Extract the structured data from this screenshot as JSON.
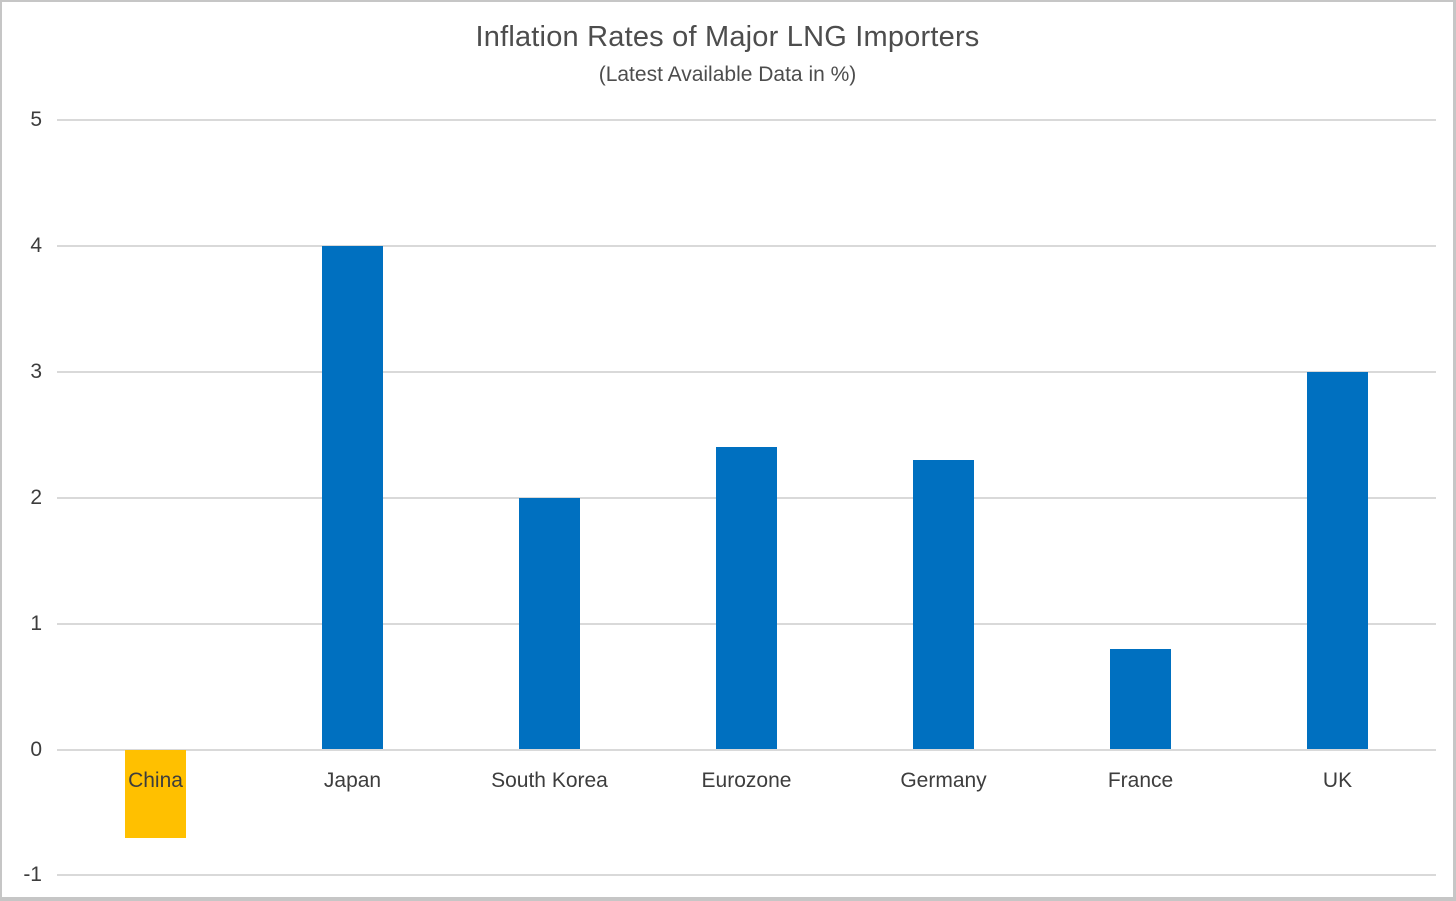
{
  "chart_data": {
    "type": "bar",
    "title": "Inflation Rates of Major LNG Importers",
    "subtitle": "(Latest Available Data in %)",
    "categories": [
      "China",
      "Japan",
      "South Korea",
      "Eurozone",
      "Germany",
      "France",
      "UK"
    ],
    "values": [
      -0.7,
      4,
      2,
      2.4,
      2.3,
      0.8,
      3
    ],
    "bar_colors": [
      "#FFC000",
      "#0070C0",
      "#0070C0",
      "#0070C0",
      "#0070C0",
      "#0070C0",
      "#0070C0"
    ],
    "yticks": [
      5,
      4,
      3,
      2,
      1,
      0,
      -1
    ],
    "ylim": [
      -1,
      5
    ],
    "xlabel": "",
    "ylabel": "",
    "grid": true,
    "legend_position": "none",
    "colors": {
      "default_bar": "#0070C0",
      "china_bar": "#FFC000",
      "gridline": "#D9D9D9",
      "title_text": "#4D4D4D",
      "axis_text": "#3D3D3D",
      "background": "#FFFFFF",
      "frame_border": "#C6C6C6"
    }
  }
}
